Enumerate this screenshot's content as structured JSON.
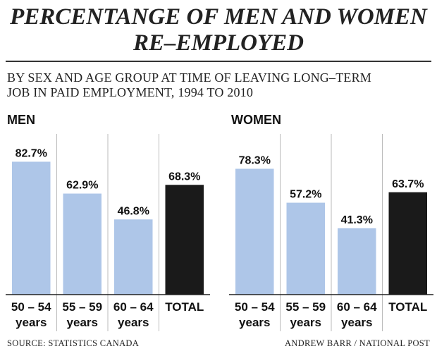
{
  "title_line1": "PERCENTANGE OF MEN AND WOMEN",
  "title_line2": "RE–EMPLOYED",
  "subtitle_line1": "BY SEX AND AGE GROUP AT TIME OF LEAVING LONG–TERM",
  "subtitle_line2": "JOB IN PAID EMPLOYMENT, 1994 TO 2010",
  "source": "SOURCE: STATISTICS CANADA",
  "credit": "ANDREW BARR / NATIONAL POST",
  "colors": {
    "age_bar": "#aec6e8",
    "total_bar": "#1a1a1a",
    "divider": "#bbbbbb",
    "baseline": "#222222"
  },
  "chart_data": [
    {
      "type": "bar",
      "panel_title": "MEN",
      "categories": [
        [
          "50 – 54",
          "years"
        ],
        [
          "55 – 59",
          "years"
        ],
        [
          "60 – 64",
          "years"
        ],
        [
          "TOTAL"
        ]
      ],
      "values": [
        82.7,
        62.9,
        46.8,
        68.3
      ],
      "value_labels": [
        "82.7%",
        "62.9%",
        "46.8%",
        "68.3%"
      ],
      "ylim": [
        0,
        100
      ]
    },
    {
      "type": "bar",
      "panel_title": "WOMEN",
      "categories": [
        [
          "50 – 54",
          "years"
        ],
        [
          "55 – 59",
          "years"
        ],
        [
          "60 – 64",
          "years"
        ],
        [
          "TOTAL"
        ]
      ],
      "values": [
        78.3,
        57.2,
        41.3,
        63.7
      ],
      "value_labels": [
        "78.3%",
        "57.2%",
        "41.3%",
        "63.7%"
      ],
      "ylim": [
        0,
        100
      ]
    }
  ]
}
